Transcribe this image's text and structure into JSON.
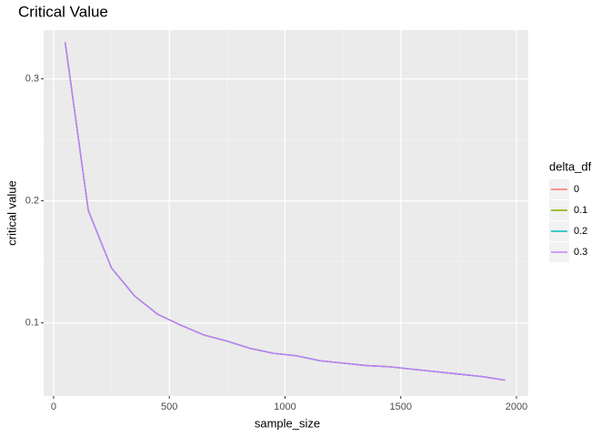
{
  "chart_data": {
    "type": "line",
    "title": "Critical Value",
    "x_label": "sample_size",
    "y_label": "critical value",
    "x": [
      50,
      150,
      250,
      350,
      450,
      550,
      650,
      750,
      850,
      950,
      1050,
      1150,
      1250,
      1350,
      1450,
      1550,
      1650,
      1750,
      1850,
      1950
    ],
    "series": [
      {
        "name": "0",
        "color": "#F8766D",
        "values": [
          0.33,
          0.192,
          0.145,
          0.122,
          0.107,
          0.098,
          0.09,
          0.085,
          0.079,
          0.075,
          0.073,
          0.069,
          0.067,
          0.065,
          0.064,
          0.062,
          0.06,
          0.058,
          0.056,
          0.053
        ]
      },
      {
        "name": "0.1",
        "color": "#7CAE00",
        "values": [
          0.33,
          0.192,
          0.145,
          0.122,
          0.107,
          0.098,
          0.09,
          0.085,
          0.079,
          0.075,
          0.073,
          0.069,
          0.067,
          0.065,
          0.064,
          0.062,
          0.06,
          0.058,
          0.056,
          0.053
        ]
      },
      {
        "name": "0.2",
        "color": "#00BFC4",
        "values": [
          0.33,
          0.192,
          0.145,
          0.122,
          0.107,
          0.098,
          0.09,
          0.085,
          0.079,
          0.075,
          0.073,
          0.069,
          0.067,
          0.065,
          0.064,
          0.062,
          0.06,
          0.058,
          0.056,
          0.053
        ]
      },
      {
        "name": "0.3",
        "color": "#C77CFF",
        "values": [
          0.33,
          0.192,
          0.145,
          0.122,
          0.107,
          0.098,
          0.09,
          0.085,
          0.079,
          0.075,
          0.073,
          0.069,
          0.067,
          0.065,
          0.064,
          0.062,
          0.06,
          0.058,
          0.056,
          0.053
        ]
      }
    ],
    "legend_title": "delta_df",
    "legend_position": "right",
    "xlim": [
      -43,
      2051
    ],
    "xticks": [
      0,
      500,
      1000,
      1500,
      2000
    ],
    "ylim": [
      0.04,
      0.34
    ],
    "yticks": [
      0.1,
      0.2,
      0.3
    ],
    "grid": true
  }
}
